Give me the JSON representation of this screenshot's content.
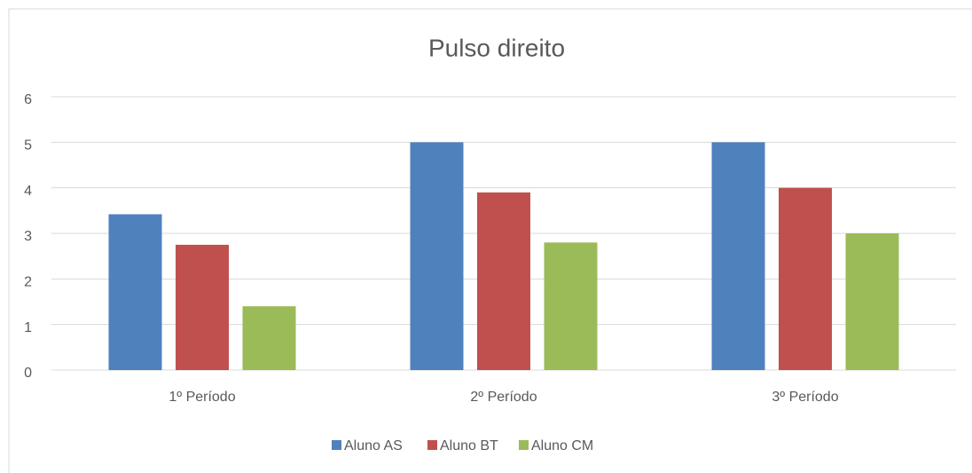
{
  "chart_data": {
    "type": "bar",
    "title": "Pulso direito",
    "categories": [
      "1º Período",
      "2º Período",
      "3º Período"
    ],
    "series": [
      {
        "name": "Aluno AS",
        "color": "#4f81bd",
        "values": [
          3.42,
          5,
          5
        ]
      },
      {
        "name": "Aluno BT",
        "color": "#c0504d",
        "values": [
          2.75,
          3.9,
          4
        ]
      },
      {
        "name": "Aluno CM",
        "color": "#9bbb59",
        "values": [
          1.4,
          2.8,
          3
        ]
      }
    ],
    "ylim": [
      0,
      6
    ],
    "yticks": [
      0,
      1,
      2,
      3,
      4,
      5,
      6
    ],
    "grid": true,
    "legend": "bottom"
  }
}
